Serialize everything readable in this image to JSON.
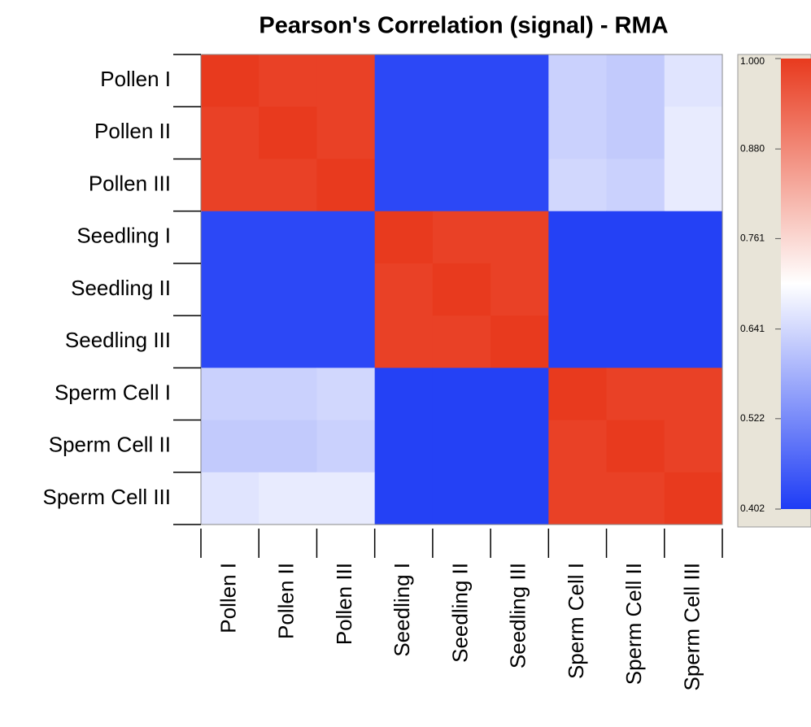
{
  "chart_data": {
    "type": "heatmap",
    "title": "Pearson's Correlation (signal) - RMA",
    "categories": [
      "Pollen I",
      "Pollen II",
      "Pollen III",
      "Seedling I",
      "Seedling II",
      "Seedling III",
      "Sperm Cell I",
      "Sperm Cell II",
      "Sperm Cell III"
    ],
    "values": [
      [
        1,
        0.99,
        0.99,
        0.42,
        0.42,
        0.42,
        0.63,
        0.62,
        0.66
      ],
      [
        0.99,
        1,
        0.99,
        0.42,
        0.42,
        0.42,
        0.63,
        0.62,
        0.67
      ],
      [
        0.99,
        0.99,
        1,
        0.42,
        0.42,
        0.42,
        0.64,
        0.63,
        0.67
      ],
      [
        0.42,
        0.42,
        0.42,
        1,
        0.99,
        0.99,
        0.41,
        0.41,
        0.41
      ],
      [
        0.42,
        0.42,
        0.42,
        0.99,
        1,
        0.99,
        0.41,
        0.41,
        0.41
      ],
      [
        0.42,
        0.42,
        0.42,
        0.99,
        0.99,
        1,
        0.41,
        0.41,
        0.41
      ],
      [
        0.63,
        0.63,
        0.64,
        0.41,
        0.41,
        0.41,
        1,
        0.99,
        0.99
      ],
      [
        0.62,
        0.62,
        0.63,
        0.41,
        0.41,
        0.41,
        0.99,
        1,
        0.99
      ],
      [
        0.66,
        0.67,
        0.67,
        0.41,
        0.41,
        0.41,
        0.99,
        0.99,
        1
      ]
    ],
    "colorscale": [
      "#1e3cf5",
      "#ffffff",
      "#e83a1e"
    ],
    "zlim": [
      0.402,
      1
    ],
    "zticks": [
      {
        "value": 1,
        "label": "1.000"
      },
      {
        "value": 0.88,
        "label": "0.880"
      },
      0.761,
      0.641,
      0.522,
      0.402
    ]
  }
}
